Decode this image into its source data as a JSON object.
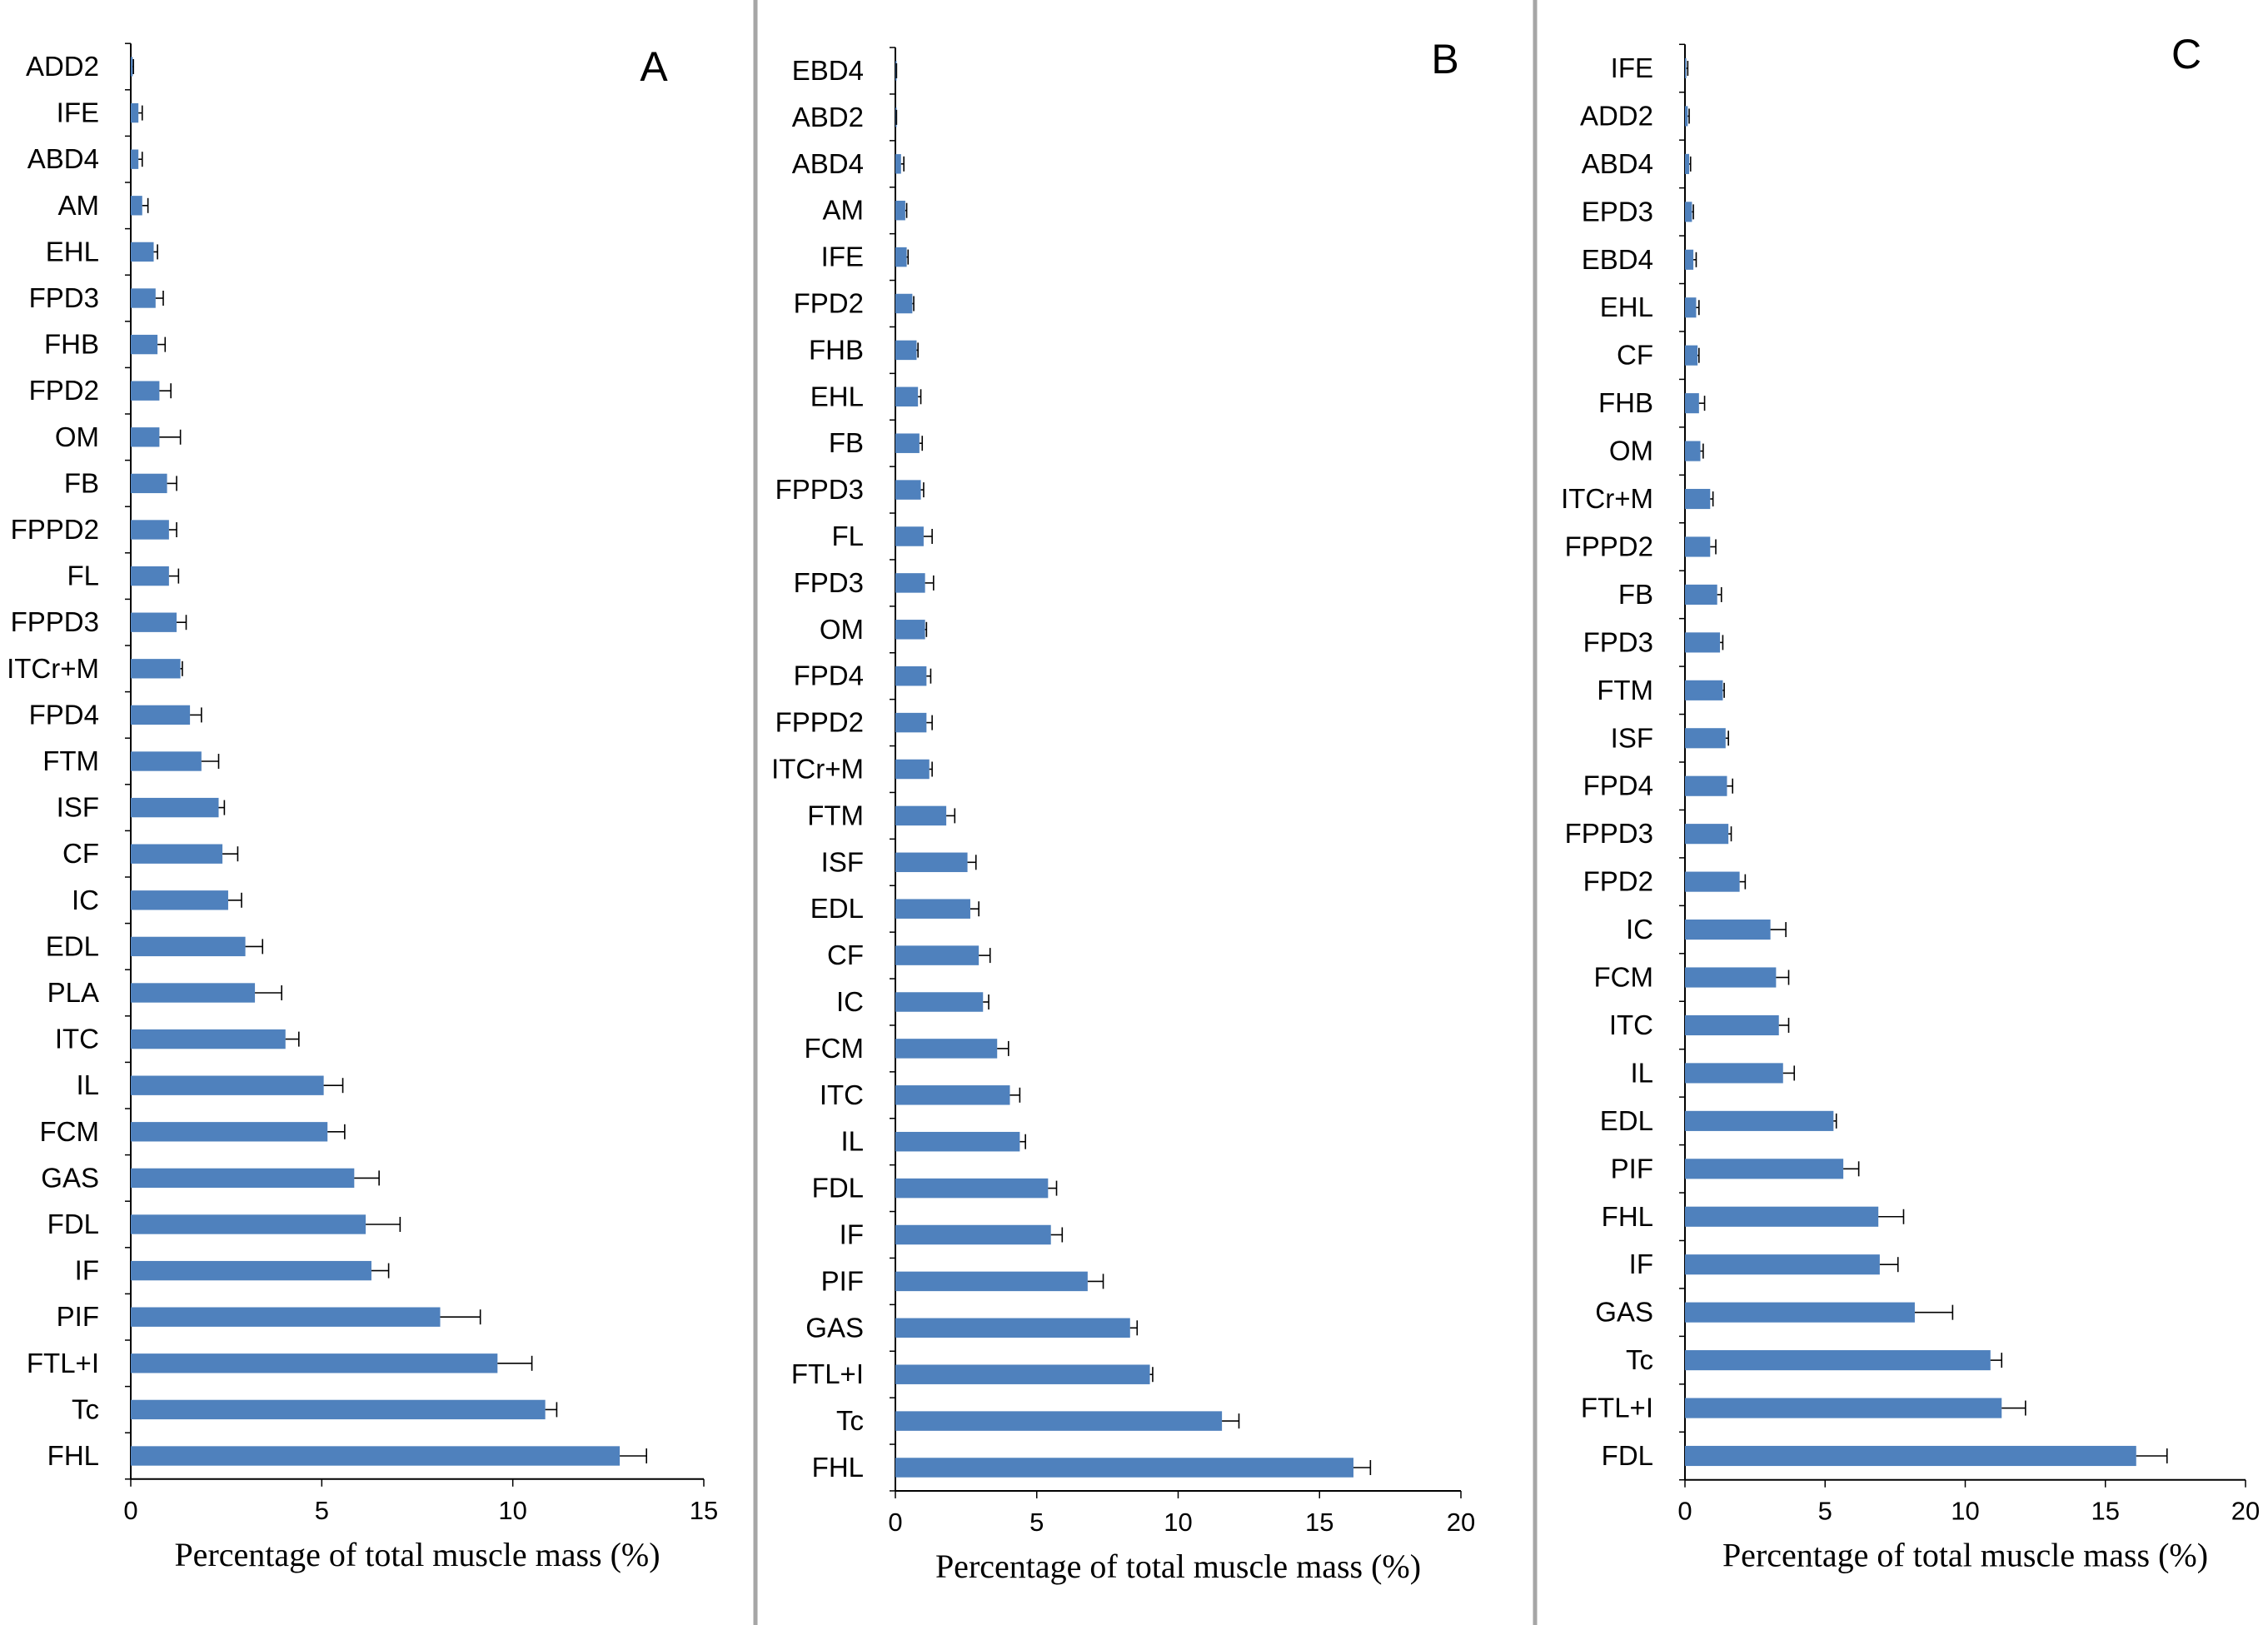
{
  "colors": {
    "bar": "#4f81bd",
    "axis": "#000000",
    "separator": "#a6a6a6"
  },
  "chart_data": [
    {
      "type": "bar",
      "orientation": "horizontal",
      "panel_label": "A",
      "xlabel": "Percentage of total muscle mass (%)",
      "xlim": [
        0,
        15
      ],
      "xticks": [
        0,
        5,
        10,
        15
      ],
      "categories": [
        "ADD2",
        "IFE",
        "ABD4",
        "AM",
        "EHL",
        "FPD3",
        "FHB",
        "FPD2",
        "OM",
        "FB",
        "FPPD2",
        "FL",
        "FPPD3",
        "ITCr+M",
        "FPD4",
        "FTM",
        "ISF",
        "CF",
        "IC",
        "EDL",
        "PLA",
        "ITC",
        "IL",
        "FCM",
        "GAS",
        "FDL",
        "IF",
        "PIF",
        "FTL+I",
        "Tc",
        "FHL"
      ],
      "values": [
        0.05,
        0.2,
        0.2,
        0.3,
        0.6,
        0.65,
        0.7,
        0.75,
        0.75,
        0.95,
        1.0,
        1.0,
        1.2,
        1.3,
        1.55,
        1.85,
        2.3,
        2.4,
        2.55,
        3.0,
        3.25,
        4.05,
        5.05,
        5.15,
        5.85,
        6.15,
        6.3,
        8.1,
        9.6,
        10.85,
        12.8
      ],
      "errors": [
        0.02,
        0.1,
        0.1,
        0.15,
        0.1,
        0.2,
        0.2,
        0.3,
        0.55,
        0.25,
        0.2,
        0.25,
        0.25,
        0.05,
        0.3,
        0.45,
        0.15,
        0.4,
        0.35,
        0.45,
        0.7,
        0.35,
        0.5,
        0.45,
        0.65,
        0.9,
        0.45,
        1.05,
        0.9,
        0.3,
        0.7
      ]
    },
    {
      "type": "bar",
      "orientation": "horizontal",
      "panel_label": "B",
      "xlabel": "Percentage of total muscle mass (%)",
      "xlim": [
        0,
        20
      ],
      "xticks": [
        0,
        5,
        10,
        15,
        20
      ],
      "categories": [
        "EBD4",
        "ABD2",
        "ABD4",
        "AM",
        "IFE",
        "FPD2",
        "FHB",
        "EHL",
        "FB",
        "FPPD3",
        "FL",
        "FPD3",
        "OM",
        "FPD4",
        "FPPD2",
        "ITCr+M",
        "FTM",
        "ISF",
        "EDL",
        "CF",
        "IC",
        "FCM",
        "ITC",
        "IL",
        "FDL",
        "IF",
        "PIF",
        "GAS",
        "FTL+I",
        "Tc",
        "FHL"
      ],
      "values": [
        0.02,
        0.02,
        0.2,
        0.35,
        0.4,
        0.6,
        0.75,
        0.8,
        0.85,
        0.9,
        1.0,
        1.05,
        1.05,
        1.1,
        1.1,
        1.2,
        1.8,
        2.55,
        2.65,
        2.95,
        3.1,
        3.6,
        4.05,
        4.4,
        5.4,
        5.5,
        6.8,
        8.3,
        9.0,
        11.55,
        16.2
      ],
      "errors": [
        0.02,
        0.02,
        0.1,
        0.05,
        0.05,
        0.05,
        0.05,
        0.1,
        0.1,
        0.1,
        0.3,
        0.3,
        0.05,
        0.15,
        0.2,
        0.1,
        0.3,
        0.3,
        0.3,
        0.4,
        0.2,
        0.4,
        0.35,
        0.2,
        0.3,
        0.4,
        0.55,
        0.25,
        0.1,
        0.6,
        0.6
      ]
    },
    {
      "type": "bar",
      "orientation": "horizontal",
      "panel_label": "C",
      "xlabel": "Percentage of total muscle mass (%)",
      "xlim": [
        0,
        20
      ],
      "xticks": [
        0,
        5,
        10,
        15,
        20
      ],
      "categories": [
        "IFE",
        "ADD2",
        "ABD4",
        "EPD3",
        "EBD4",
        "EHL",
        "CF",
        "FHB",
        "OM",
        "ITCr+M",
        "FPPD2",
        "FB",
        "FPD3",
        "FTM",
        "ISF",
        "FPD4",
        "FPPD3",
        "FPD2",
        "IC",
        "FCM",
        "ITC",
        "IL",
        "EDL",
        "PIF",
        "FHL",
        "IF",
        "GAS",
        "Tc",
        "FTL+I",
        "FDL"
      ],
      "values": [
        0.05,
        0.1,
        0.15,
        0.25,
        0.3,
        0.4,
        0.45,
        0.5,
        0.55,
        0.9,
        0.9,
        1.15,
        1.25,
        1.35,
        1.45,
        1.5,
        1.55,
        1.95,
        3.05,
        3.25,
        3.35,
        3.5,
        5.3,
        5.65,
        6.9,
        6.95,
        8.2,
        10.9,
        11.3,
        16.1
      ],
      "errors": [
        0.05,
        0.05,
        0.05,
        0.05,
        0.1,
        0.1,
        0.05,
        0.2,
        0.1,
        0.1,
        0.2,
        0.15,
        0.1,
        0.05,
        0.1,
        0.2,
        0.1,
        0.2,
        0.55,
        0.45,
        0.35,
        0.4,
        0.1,
        0.55,
        0.9,
        0.65,
        1.35,
        0.4,
        0.85,
        1.1
      ]
    }
  ]
}
